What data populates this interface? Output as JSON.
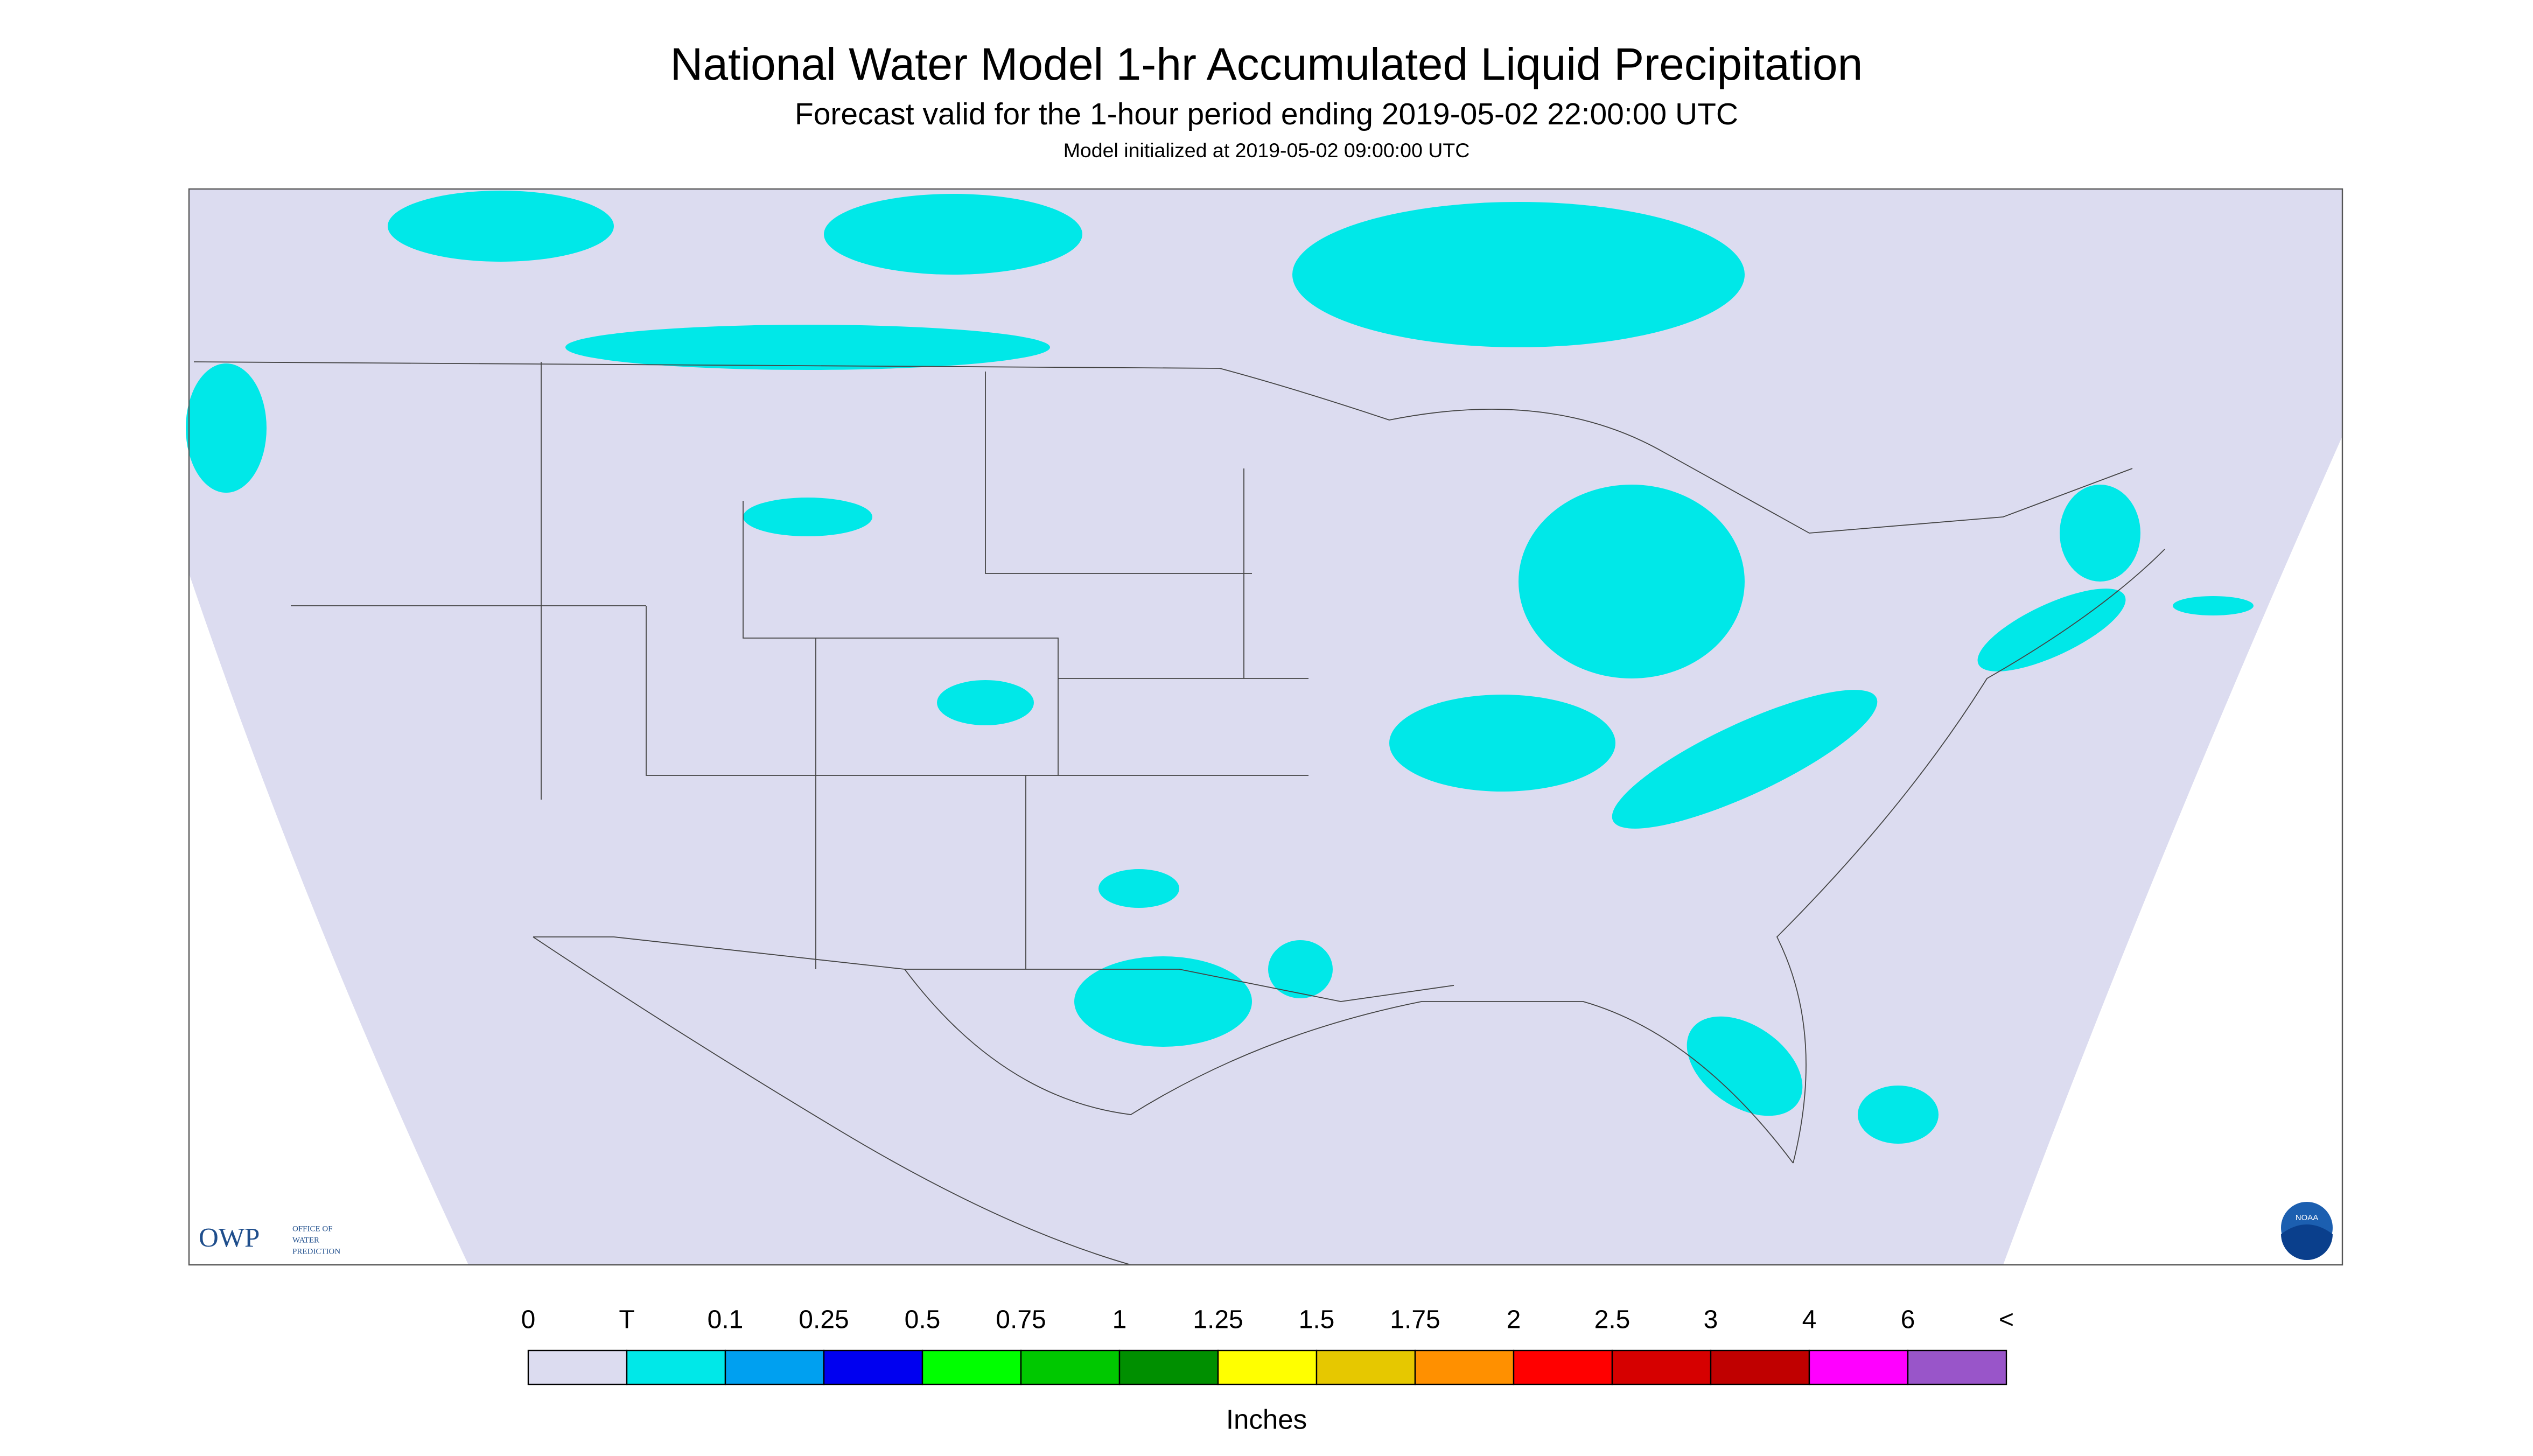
{
  "header": {
    "title": "National Water Model 1-hr Accumulated Liquid Precipitation",
    "subtitle": "Forecast valid for the 1-hour period ending 2019-05-02 22:00:00 UTC",
    "note": "Model initialized at 2019-05-02 09:00:00 UTC"
  },
  "logos": {
    "owp": "OWP",
    "owp_lines": [
      "OFFICE OF",
      "WATER",
      "PREDICTION"
    ],
    "noaa": "NOAA"
  },
  "legend": {
    "labels": [
      "0",
      "T",
      "0.1",
      "0.25",
      "0.5",
      "0.75",
      "1",
      "1.25",
      "1.5",
      "1.75",
      "2",
      "2.5",
      "3",
      "4",
      "6",
      "<"
    ],
    "colors": [
      "#dcdcf0",
      "#00e8e8",
      "#00a0f0",
      "#0000f0",
      "#00ff00",
      "#00c800",
      "#008f00",
      "#ffff00",
      "#e6c800",
      "#ff9000",
      "#ff0000",
      "#d60000",
      "#c00000",
      "#ff00ff",
      "#9955c9"
    ],
    "unit": "Inches"
  }
}
